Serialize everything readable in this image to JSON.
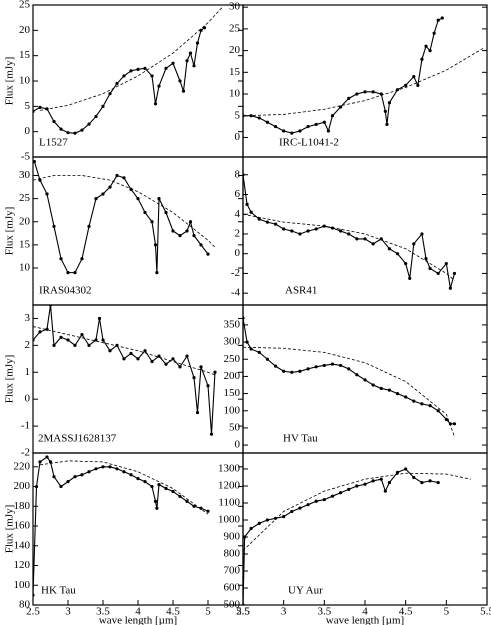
{
  "chart_data": [
    {
      "type": "line",
      "label": "L1527",
      "ylabel": "Flux [mJy]",
      "xlim": [
        2.5,
        5.5
      ],
      "ylim": [
        -5,
        25
      ],
      "yticks": [
        -5,
        0,
        5,
        10,
        15,
        20,
        25
      ],
      "series": [
        {
          "color": "#000000",
          "markers": true,
          "dashed": false,
          "x": [
            2.5,
            2.6,
            2.7,
            2.8,
            2.9,
            3.0,
            3.1,
            3.2,
            3.3,
            3.4,
            3.5,
            3.6,
            3.7,
            3.8,
            3.9,
            4.0,
            4.1,
            4.2,
            4.25,
            4.3,
            4.4,
            4.5,
            4.6,
            4.65,
            4.7,
            4.75,
            4.8,
            4.85,
            4.9,
            4.95
          ],
          "values": [
            4,
            4.8,
            4.5,
            2,
            0.5,
            -0.2,
            -0.3,
            0.3,
            1.5,
            3,
            5,
            7.5,
            9.5,
            11,
            12,
            12.3,
            12.5,
            11,
            5.5,
            9,
            12.5,
            13.5,
            10,
            8,
            14,
            15.5,
            13,
            17.5,
            20,
            20.5
          ]
        },
        {
          "color": "#000000",
          "markers": false,
          "dashed": true,
          "x": [
            2.6,
            3.0,
            3.5,
            4.0,
            4.5,
            5.0,
            5.2
          ],
          "values": [
            4.2,
            5.2,
            7.5,
            11,
            15.5,
            21.5,
            24.5
          ]
        }
      ]
    },
    {
      "type": "line",
      "label": "IRC-L1041-2",
      "xlim": [
        2.5,
        5.5
      ],
      "ylim": [
        -4.5,
        30.5
      ],
      "yticks": [
        0,
        5,
        10,
        15,
        20,
        25,
        30
      ],
      "series": [
        {
          "color": "#000000",
          "markers": true,
          "dashed": false,
          "x": [
            2.5,
            2.6,
            2.7,
            2.8,
            2.9,
            3.0,
            3.1,
            3.2,
            3.3,
            3.4,
            3.5,
            3.55,
            3.6,
            3.7,
            3.8,
            3.9,
            4.0,
            4.1,
            4.2,
            4.25,
            4.27,
            4.3,
            4.4,
            4.5,
            4.6,
            4.65,
            4.7,
            4.75,
            4.8,
            4.85,
            4.9,
            4.95
          ],
          "values": [
            5,
            5,
            4.5,
            3.5,
            2.5,
            1.5,
            1,
            1.5,
            2.5,
            3,
            3.5,
            1.5,
            5,
            7,
            9,
            10,
            10.5,
            10.5,
            10,
            6,
            3,
            8,
            11,
            12,
            14,
            12,
            18,
            21,
            20,
            24,
            27,
            27.5
          ]
        },
        {
          "color": "#000000",
          "markers": false,
          "dashed": true,
          "x": [
            2.5,
            3.0,
            3.5,
            4.0,
            4.5,
            5.0,
            5.45
          ],
          "values": [
            5,
            5.3,
            6.5,
            8.5,
            11.5,
            15.5,
            20.5
          ]
        }
      ]
    },
    {
      "type": "line",
      "label": "IRAS04302",
      "ylabel": "Flux [mJy]",
      "xlim": [
        2.5,
        5.5
      ],
      "ylim": [
        2,
        34
      ],
      "yticks": [
        10,
        15,
        20,
        25,
        30
      ],
      "series": [
        {
          "color": "#000000",
          "markers": true,
          "dashed": false,
          "x": [
            2.52,
            2.6,
            2.7,
            2.8,
            2.9,
            3.0,
            3.1,
            3.2,
            3.3,
            3.4,
            3.5,
            3.6,
            3.7,
            3.8,
            3.9,
            4.0,
            4.1,
            4.2,
            4.25,
            4.27,
            4.3,
            4.4,
            4.5,
            4.6,
            4.7,
            4.75,
            4.8,
            4.9,
            5.0
          ],
          "values": [
            33,
            29,
            26,
            19,
            12,
            9,
            9,
            12,
            19,
            25,
            26,
            27.5,
            30,
            29.5,
            27,
            25,
            22,
            20,
            15,
            9,
            25,
            22,
            18,
            17,
            18,
            20,
            17,
            15,
            13
          ]
        },
        {
          "color": "#000000",
          "markers": false,
          "dashed": true,
          "x": [
            2.5,
            2.8,
            3.2,
            3.6,
            4.0,
            4.5,
            5.0,
            5.1
          ],
          "values": [
            29,
            30,
            30,
            29,
            26.5,
            22,
            16,
            14.5
          ]
        }
      ]
    },
    {
      "type": "line",
      "label": "ASR41",
      "xlim": [
        2.5,
        5.5
      ],
      "ylim": [
        -5.2,
        9.8
      ],
      "yticks": [
        -4,
        -2,
        0,
        2,
        4,
        6,
        8
      ],
      "series": [
        {
          "color": "#000000",
          "markers": true,
          "dashed": false,
          "x": [
            2.5,
            2.55,
            2.6,
            2.7,
            2.8,
            2.9,
            3.0,
            3.1,
            3.2,
            3.3,
            3.4,
            3.5,
            3.6,
            3.7,
            3.8,
            3.9,
            4.0,
            4.1,
            4.2,
            4.3,
            4.4,
            4.5,
            4.55,
            4.6,
            4.7,
            4.75,
            4.8,
            4.9,
            5.0,
            5.05,
            5.1
          ],
          "values": [
            8,
            5,
            4.2,
            3.5,
            3.2,
            3,
            2.5,
            2.3,
            2,
            2.3,
            2.5,
            2.8,
            2.6,
            2.3,
            2,
            1.5,
            1.5,
            1,
            1.5,
            0.5,
            0,
            -1,
            -2.5,
            1,
            2,
            -0.5,
            -1.5,
            -2,
            -1,
            -3.5,
            -2
          ]
        },
        {
          "color": "#000000",
          "markers": false,
          "dashed": true,
          "x": [
            2.5,
            3.0,
            3.5,
            4.0,
            4.5,
            5.0,
            5.1
          ],
          "values": [
            4,
            3.2,
            2.8,
            2,
            0.5,
            -2,
            -2.7
          ]
        }
      ]
    },
    {
      "type": "line",
      "label": "2MASSJ1628137",
      "ylabel": "Flux [mJy]",
      "xlim": [
        2.5,
        5.5
      ],
      "ylim": [
        -2,
        3.5
      ],
      "yticks": [
        -2,
        -1,
        0,
        1,
        2,
        3
      ],
      "series": [
        {
          "color": "#000000",
          "markers": true,
          "dashed": false,
          "x": [
            2.5,
            2.6,
            2.7,
            2.75,
            2.8,
            2.9,
            3.0,
            3.1,
            3.2,
            3.3,
            3.4,
            3.45,
            3.5,
            3.6,
            3.7,
            3.8,
            3.9,
            4.0,
            4.1,
            4.2,
            4.3,
            4.4,
            4.5,
            4.6,
            4.7,
            4.8,
            4.85,
            4.9,
            5.0,
            5.05,
            5.1
          ],
          "values": [
            2.2,
            2.5,
            2.6,
            3.5,
            2,
            2.3,
            2.2,
            2,
            2.4,
            2,
            2.2,
            3,
            2.2,
            1.8,
            2,
            1.5,
            1.7,
            1.5,
            1.8,
            1.4,
            1.6,
            1.3,
            1.5,
            1.2,
            1.6,
            0.8,
            -0.5,
            1.2,
            0.5,
            -1.3,
            1
          ]
        },
        {
          "color": "#000000",
          "markers": false,
          "dashed": true,
          "x": [
            2.5,
            3.0,
            3.5,
            4.0,
            4.5,
            5.0,
            5.1
          ],
          "values": [
            2.7,
            2.4,
            2.1,
            1.8,
            1.4,
            1,
            0.9
          ]
        }
      ]
    },
    {
      "type": "line",
      "label": "HV Tau",
      "xlim": [
        2.5,
        5.5
      ],
      "ylim": [
        -23,
        408
      ],
      "yticks": [
        0,
        50,
        100,
        150,
        200,
        250,
        300,
        350
      ],
      "series": [
        {
          "color": "#000000",
          "markers": true,
          "dashed": false,
          "x": [
            2.5,
            2.55,
            2.6,
            2.7,
            2.8,
            2.9,
            3.0,
            3.1,
            3.2,
            3.3,
            3.4,
            3.5,
            3.6,
            3.7,
            3.8,
            3.9,
            4.0,
            4.1,
            4.2,
            4.3,
            4.4,
            4.5,
            4.6,
            4.7,
            4.8,
            4.9,
            5.0,
            5.05,
            5.1
          ],
          "values": [
            370,
            300,
            280,
            270,
            250,
            230,
            215,
            212,
            215,
            222,
            228,
            232,
            236,
            232,
            222,
            205,
            190,
            175,
            165,
            160,
            150,
            140,
            128,
            120,
            115,
            100,
            75,
            62,
            62
          ]
        },
        {
          "color": "#000000",
          "markers": false,
          "dashed": true,
          "x": [
            2.5,
            3.0,
            3.5,
            4.0,
            4.5,
            5.0,
            5.1
          ],
          "values": [
            285,
            282,
            270,
            240,
            185,
            90,
            25
          ]
        }
      ]
    },
    {
      "type": "line",
      "label": "HK Tau",
      "ylabel": "Flux [mJy]",
      "xlabel": "wave length [µm]",
      "xlim": [
        2.5,
        5.5
      ],
      "xticks": [
        2.5,
        3,
        3.5,
        4,
        4.5,
        5,
        5.5
      ],
      "ylim": [
        80,
        234
      ],
      "yticks": [
        80,
        100,
        120,
        140,
        160,
        180,
        200,
        220
      ],
      "series": [
        {
          "color": "#000000",
          "markers": true,
          "dashed": false,
          "x": [
            2.5,
            2.55,
            2.6,
            2.7,
            2.75,
            2.8,
            2.9,
            3.0,
            3.1,
            3.2,
            3.3,
            3.4,
            3.5,
            3.6,
            3.7,
            3.8,
            3.9,
            4.0,
            4.1,
            4.2,
            4.25,
            4.27,
            4.3,
            4.4,
            4.5,
            4.6,
            4.7,
            4.8,
            4.9,
            5.0
          ],
          "values": [
            90,
            200,
            225,
            230,
            225,
            210,
            200,
            205,
            210,
            212,
            215,
            218,
            220,
            220,
            218,
            215,
            212,
            208,
            205,
            200,
            185,
            178,
            202,
            198,
            195,
            190,
            185,
            180,
            178,
            175
          ]
        },
        {
          "color": "#000000",
          "markers": false,
          "dashed": true,
          "x": [
            2.6,
            3.0,
            3.5,
            4.0,
            4.5,
            5.0
          ],
          "values": [
            222,
            226,
            225,
            215,
            198,
            172
          ]
        }
      ]
    },
    {
      "type": "line",
      "label": "UY Aur",
      "xlabel": "wave length [µm]",
      "xlim": [
        2.5,
        5.5
      ],
      "xticks": [
        2.5,
        3,
        3.5,
        4,
        4.5,
        5,
        5.5
      ],
      "ylim": [
        500,
        1394
      ],
      "yticks": [
        500,
        600,
        700,
        800,
        900,
        1000,
        1100,
        1200,
        1300
      ],
      "series": [
        {
          "color": "#000000",
          "markers": true,
          "dashed": false,
          "x": [
            2.5,
            2.52,
            2.6,
            2.7,
            2.8,
            2.9,
            3.0,
            3.1,
            3.2,
            3.3,
            3.4,
            3.5,
            3.6,
            3.7,
            3.8,
            3.9,
            4.0,
            4.1,
            4.2,
            4.25,
            4.3,
            4.4,
            4.5,
            4.6,
            4.7,
            4.8,
            4.9
          ],
          "values": [
            500,
            900,
            950,
            980,
            1000,
            1010,
            1020,
            1050,
            1070,
            1090,
            1110,
            1120,
            1140,
            1160,
            1180,
            1200,
            1210,
            1230,
            1240,
            1170,
            1220,
            1280,
            1300,
            1250,
            1220,
            1230,
            1220
          ]
        },
        {
          "color": "#000000",
          "markers": false,
          "dashed": true,
          "x": [
            2.5,
            3.0,
            3.5,
            4.0,
            4.5,
            5.0,
            5.3
          ],
          "values": [
            820,
            1050,
            1170,
            1240,
            1275,
            1270,
            1240
          ]
        }
      ]
    }
  ]
}
